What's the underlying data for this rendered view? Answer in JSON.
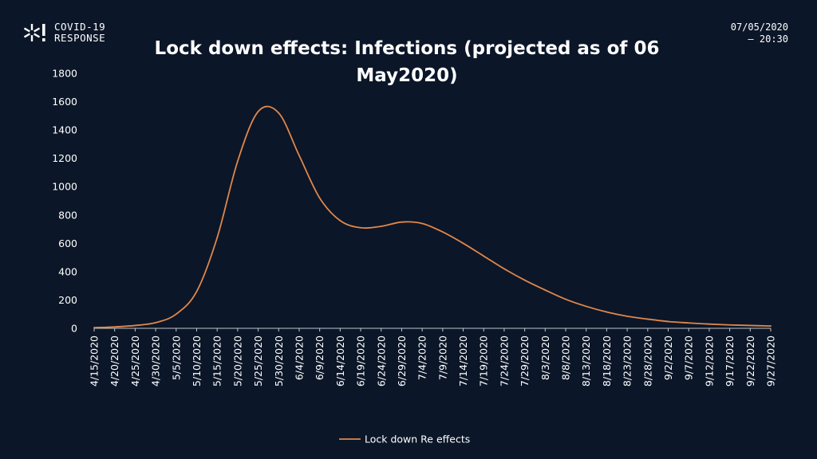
{
  "header": {
    "logo_line1": "COVID-19",
    "logo_line2": "RESPONSE",
    "date": "07/05/2020",
    "time": "— 20:30"
  },
  "chart_data": {
    "type": "line",
    "title_line1": "Lock down effects: Infections (projected as of 06",
    "title_line2": "May2020)",
    "xlabel": "",
    "ylabel": "",
    "ylim": [
      0,
      1800
    ],
    "yticks": [
      0,
      200,
      400,
      600,
      800,
      1000,
      1200,
      1400,
      1600,
      1800
    ],
    "grid": false,
    "legend_position": "bottom",
    "line_color": "#e0874a",
    "categories": [
      "4/15/2020",
      "4/20/2020",
      "4/25/2020",
      "4/30/2020",
      "5/5/2020",
      "5/10/2020",
      "5/15/2020",
      "5/20/2020",
      "5/25/2020",
      "5/30/2020",
      "6/4/2020",
      "6/9/2020",
      "6/14/2020",
      "6/19/2020",
      "6/24/2020",
      "6/29/2020",
      "7/4/2020",
      "7/9/2020",
      "7/14/2020",
      "7/19/2020",
      "7/24/2020",
      "7/29/2020",
      "8/3/2020",
      "8/8/2020",
      "8/13/2020",
      "8/18/2020",
      "8/23/2020",
      "8/28/2020",
      "9/2/2020",
      "9/7/2020",
      "9/12/2020",
      "9/17/2020",
      "9/22/2020",
      "9/27/2020"
    ],
    "series": [
      {
        "name": "Lock down Re effects",
        "values": [
          5,
          10,
          20,
          40,
          100,
          260,
          640,
          1180,
          1530,
          1520,
          1220,
          920,
          760,
          710,
          720,
          750,
          740,
          680,
          600,
          510,
          420,
          340,
          270,
          205,
          155,
          115,
          85,
          65,
          48,
          38,
          30,
          24,
          20,
          16
        ]
      }
    ]
  }
}
